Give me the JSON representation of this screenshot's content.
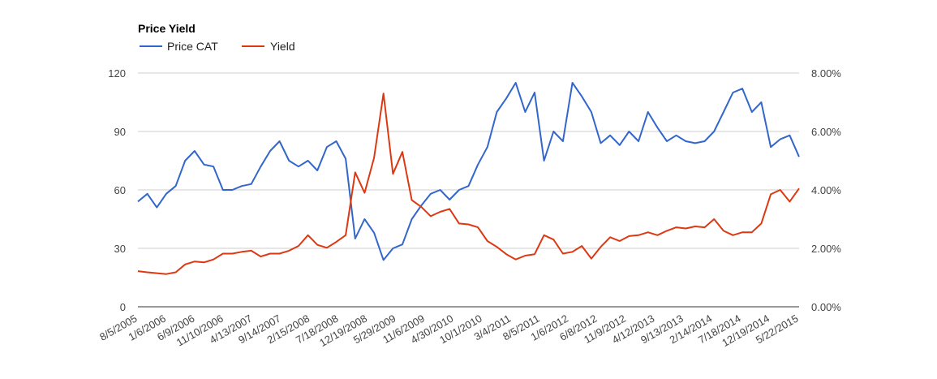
{
  "chart_data": {
    "type": "line",
    "title": "Price Yield",
    "legend_position": "top-left",
    "grid": true,
    "x_tick_labels": [
      "8/5/2005",
      "1/6/2006",
      "6/9/2006",
      "11/10/2006",
      "4/13/2007",
      "9/14/2007",
      "2/15/2008",
      "7/18/2008",
      "12/19/2008",
      "5/29/2009",
      "11/6/2009",
      "4/30/2010",
      "10/1/2010",
      "3/4/2011",
      "8/5/2011",
      "1/6/2012",
      "6/8/2012",
      "11/9/2012",
      "4/12/2013",
      "9/13/2013",
      "2/14/2014",
      "7/18/2014",
      "12/19/2014",
      "5/22/2015"
    ],
    "y_left": {
      "ticks": [
        "0",
        "30",
        "60",
        "90",
        "120"
      ],
      "ylim": [
        0,
        120
      ]
    },
    "y_right": {
      "ticks": [
        "0.00%",
        "2.00%",
        "4.00%",
        "6.00%",
        "8.00%"
      ],
      "ylim": [
        0,
        8
      ]
    },
    "x": [
      "8/5/2005",
      "10/7/2005",
      "12/9/2005",
      "1/6/2006",
      "3/10/2006",
      "5/12/2006",
      "6/9/2006",
      "8/11/2006",
      "10/13/2006",
      "11/10/2006",
      "1/12/2007",
      "3/16/2007",
      "4/13/2007",
      "6/15/2007",
      "8/17/2007",
      "9/14/2007",
      "11/16/2007",
      "1/18/2008",
      "2/15/2008",
      "4/18/2008",
      "6/20/2008",
      "7/18/2008",
      "9/19/2008",
      "11/21/2008",
      "12/19/2008",
      "2/20/2009",
      "4/24/2009",
      "5/29/2009",
      "7/31/2009",
      "10/2/2009",
      "11/6/2009",
      "1/8/2010",
      "3/12/2010",
      "4/30/2010",
      "7/2/2010",
      "8/27/2010",
      "10/1/2010",
      "12/3/2010",
      "2/4/2011",
      "3/4/2011",
      "5/6/2011",
      "7/8/2011",
      "8/5/2011",
      "10/7/2011",
      "12/9/2011",
      "1/6/2012",
      "3/9/2012",
      "5/11/2012",
      "6/8/2012",
      "8/10/2012",
      "10/12/2012",
      "11/9/2012",
      "1/11/2013",
      "3/15/2013",
      "4/12/2013",
      "6/14/2013",
      "8/16/2013",
      "9/13/2013",
      "11/15/2013",
      "1/17/2014",
      "2/14/2014",
      "4/18/2014",
      "6/20/2014",
      "7/18/2014",
      "9/19/2014",
      "11/21/2014",
      "12/19/2014",
      "2/20/2015",
      "4/24/2015",
      "5/22/2015",
      "6/26/2015"
    ],
    "series": [
      {
        "name": "Price CAT",
        "axis": "left",
        "color": "#3366cc",
        "values": [
          54,
          58,
          51,
          58,
          62,
          75,
          80,
          73,
          72,
          60,
          60,
          62,
          63,
          72,
          80,
          85,
          75,
          72,
          75,
          70,
          82,
          85,
          76,
          35,
          45,
          38,
          24,
          30,
          32,
          45,
          52,
          58,
          60,
          55,
          60,
          62,
          73,
          82,
          100,
          107,
          115,
          100,
          110,
          75,
          90,
          85,
          115,
          108,
          100,
          84,
          88,
          83,
          90,
          85,
          100,
          92,
          85,
          88,
          85,
          84,
          85,
          90,
          100,
          110,
          112,
          100,
          105,
          82,
          86,
          88,
          77
        ]
      },
      {
        "name": "Yield",
        "axis": "right",
        "color": "#dc3912",
        "values": [
          1.22,
          1.18,
          1.15,
          1.12,
          1.18,
          1.45,
          1.55,
          1.52,
          1.62,
          1.82,
          1.82,
          1.88,
          1.92,
          1.72,
          1.82,
          1.82,
          1.92,
          2.08,
          2.45,
          2.12,
          2.02,
          2.22,
          2.45,
          4.6,
          3.9,
          5.1,
          7.3,
          4.55,
          5.3,
          3.65,
          3.42,
          3.1,
          3.25,
          3.35,
          2.85,
          2.82,
          2.72,
          2.25,
          2.05,
          1.8,
          1.62,
          1.75,
          1.8,
          2.45,
          2.3,
          1.82,
          1.88,
          2.08,
          1.65,
          2.05,
          2.38,
          2.25,
          2.42,
          2.45,
          2.55,
          2.45,
          2.6,
          2.72,
          2.68,
          2.75,
          2.72,
          3.0,
          2.6,
          2.45,
          2.55,
          2.55,
          2.85,
          3.85,
          4.0,
          3.6,
          4.05
        ]
      }
    ]
  }
}
